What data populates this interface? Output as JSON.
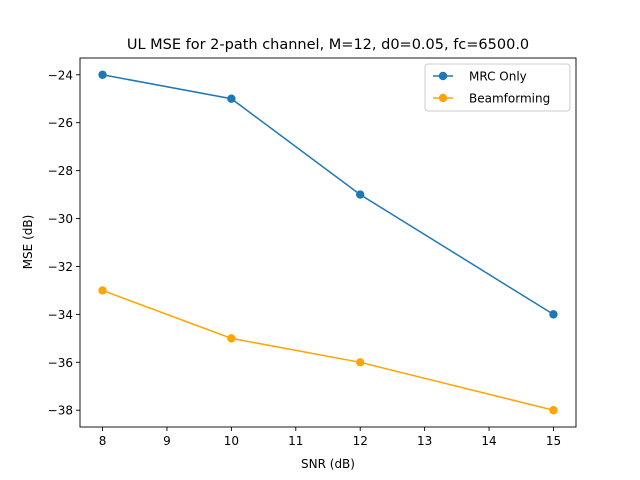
{
  "chart_data": {
    "type": "line",
    "title": "UL MSE for 2-path channel, M=12, d0=0.05, fc=6500.0",
    "xlabel": "SNR (dB)",
    "ylabel": "MSE (dB)",
    "xlim": [
      7.65,
      15.35
    ],
    "ylim": [
      -38.7,
      -23.3
    ],
    "x_ticks": [
      8,
      9,
      10,
      11,
      12,
      13,
      14,
      15
    ],
    "y_ticks": [
      -24,
      -26,
      -28,
      -30,
      -32,
      -34,
      -36,
      -38
    ],
    "grid": false,
    "legend_position": "top-right",
    "series": [
      {
        "name": "MRC Only",
        "color": "#1f77b4",
        "x": [
          8,
          10,
          12,
          15
        ],
        "y": [
          -24,
          -25,
          -29,
          -34
        ]
      },
      {
        "name": "Beamforming",
        "color": "#ffa500",
        "x": [
          8,
          10,
          12,
          15
        ],
        "y": [
          -33,
          -35,
          -36,
          -38
        ]
      }
    ]
  }
}
